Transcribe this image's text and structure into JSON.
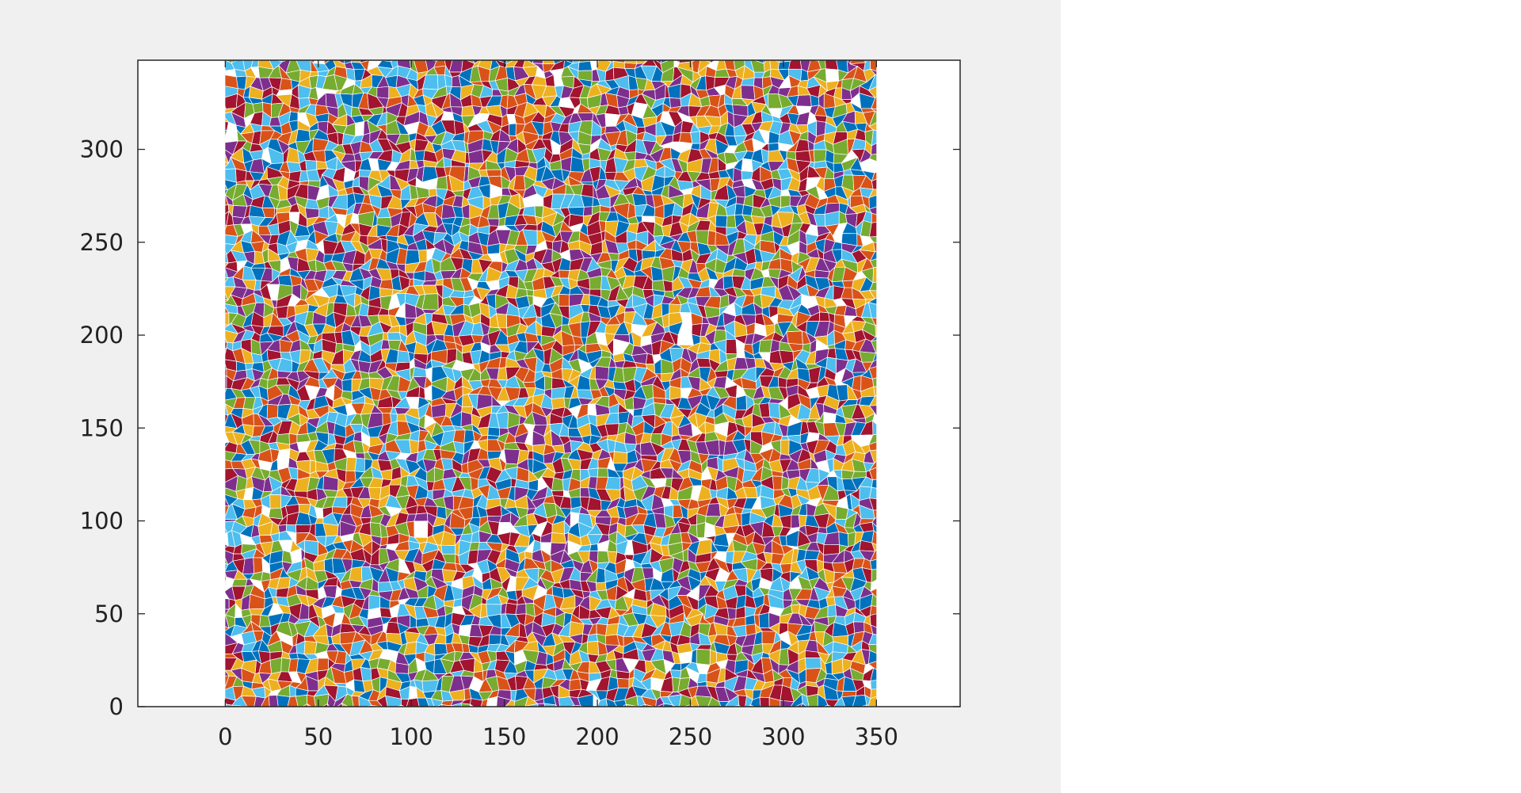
{
  "chart_data": {
    "type": "scatter",
    "title": "",
    "xlabel": "",
    "ylabel": "",
    "xlim": [
      -47,
      395
    ],
    "ylim": [
      0,
      348
    ],
    "xticks": [
      0,
      50,
      100,
      150,
      200,
      250,
      300,
      350
    ],
    "yticks": [
      0,
      50,
      100,
      150,
      200,
      250,
      300
    ],
    "data_extent": {
      "x": [
        0,
        350
      ],
      "y": [
        0,
        348
      ]
    },
    "region_colors": [
      "#0072bd",
      "#d95319",
      "#edb120",
      "#7e2f8e",
      "#77ac30",
      "#4dbeee",
      "#a2142f"
    ],
    "gap_color": "#ffffff",
    "grid": false,
    "legend": "none"
  }
}
